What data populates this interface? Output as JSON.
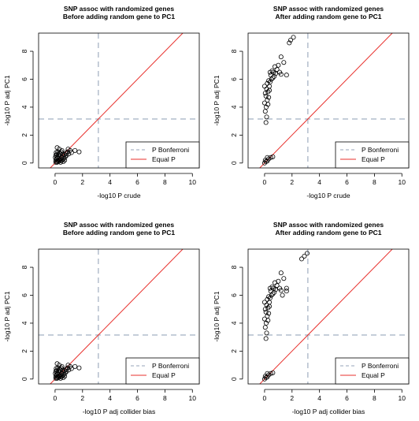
{
  "colors": {
    "bonferroni": "#b8c2d0",
    "equal": "#e8302c",
    "points": "#000000",
    "axis": "#000000"
  },
  "chart_data": [
    {
      "type": "scatter",
      "title": [
        "SNP assoc with randomized genes",
        "Before adding random gene to PC1"
      ],
      "xlabel": "-log10 P crude",
      "ylabel": "-log10 P adj PC1",
      "xlim": [
        -1.2,
        10.5
      ],
      "ylim": [
        -0.35,
        9.3
      ],
      "xticks": [
        0,
        2,
        4,
        6,
        8,
        10
      ],
      "yticks": [
        0,
        2,
        4,
        6,
        8
      ],
      "bonferroni": 3.15,
      "legend": {
        "position": "bottom-right",
        "entries": [
          {
            "label": "P Bonferroni",
            "style": "dashed"
          },
          {
            "label": "Equal P",
            "style": "solid"
          }
        ]
      },
      "points": [
        [
          0.05,
          0.05
        ],
        [
          0.1,
          0.1
        ],
        [
          0.15,
          0.05
        ],
        [
          0.2,
          0.15
        ],
        [
          0.05,
          0.2
        ],
        [
          0.25,
          0.1
        ],
        [
          0.3,
          0.25
        ],
        [
          0.1,
          0.3
        ],
        [
          0.35,
          0.2
        ],
        [
          0.2,
          0.35
        ],
        [
          0.4,
          0.3
        ],
        [
          0.15,
          0.45
        ],
        [
          0.45,
          0.15
        ],
        [
          0.5,
          0.4
        ],
        [
          0.3,
          0.5
        ],
        [
          0.55,
          0.25
        ],
        [
          0.6,
          0.5
        ],
        [
          0.25,
          0.6
        ],
        [
          0.65,
          0.35
        ],
        [
          0.7,
          0.6
        ],
        [
          0.35,
          0.7
        ],
        [
          0.75,
          0.45
        ],
        [
          0.8,
          0.7
        ],
        [
          0.45,
          0.8
        ],
        [
          0.85,
          0.55
        ],
        [
          0.9,
          0.8
        ],
        [
          0.5,
          0.9
        ],
        [
          1.0,
          0.65
        ],
        [
          1.1,
          0.9
        ],
        [
          0.15,
          1.1
        ],
        [
          0.05,
          0.55
        ],
        [
          0.4,
          0.05
        ],
        [
          0.6,
          0.1
        ],
        [
          0.08,
          0.75
        ],
        [
          1.2,
          0.75
        ],
        [
          1.45,
          0.9
        ],
        [
          1.75,
          0.8
        ],
        [
          0.95,
          1.0
        ],
        [
          0.3,
          1.0
        ],
        [
          0.2,
          0.8
        ],
        [
          0.55,
          0.65
        ],
        [
          0.7,
          0.2
        ],
        [
          0.02,
          0.4
        ],
        [
          0.12,
          0.62
        ]
      ]
    },
    {
      "type": "scatter",
      "title": [
        "SNP assoc with randomized genes",
        "After adding random gene to PC1"
      ],
      "xlabel": "-log10 P crude",
      "ylabel": "-log10 P adj PC1",
      "xlim": [
        -1.2,
        10.5
      ],
      "ylim": [
        -0.35,
        9.3
      ],
      "xticks": [
        0,
        2,
        4,
        6,
        8,
        10
      ],
      "yticks": [
        0,
        2,
        4,
        6,
        8
      ],
      "bonferroni": 3.15,
      "legend": {
        "position": "bottom-right",
        "entries": [
          {
            "label": "P Bonferroni",
            "style": "dashed"
          },
          {
            "label": "Equal P",
            "style": "solid"
          }
        ]
      },
      "points": [
        [
          0.0,
          0.0
        ],
        [
          0.1,
          0.1
        ],
        [
          0.2,
          0.15
        ],
        [
          0.3,
          0.3
        ],
        [
          0.45,
          0.4
        ],
        [
          0.6,
          0.45
        ],
        [
          0.2,
          0.4
        ],
        [
          0.05,
          0.2
        ],
        [
          0.1,
          2.9
        ],
        [
          0.15,
          3.3
        ],
        [
          0.05,
          3.7
        ],
        [
          0.12,
          4.0
        ],
        [
          0.0,
          4.3
        ],
        [
          0.2,
          4.5
        ],
        [
          0.1,
          4.8
        ],
        [
          0.05,
          5.0
        ],
        [
          0.25,
          5.1
        ],
        [
          0.15,
          5.3
        ],
        [
          0.35,
          5.5
        ],
        [
          0.2,
          5.7
        ],
        [
          0.4,
          5.8
        ],
        [
          0.5,
          6.0
        ],
        [
          0.3,
          5.9
        ],
        [
          0.6,
          6.1
        ],
        [
          0.7,
          6.2
        ],
        [
          0.45,
          6.3
        ],
        [
          0.8,
          6.4
        ],
        [
          0.9,
          6.7
        ],
        [
          1.1,
          6.5
        ],
        [
          1.2,
          6.35
        ],
        [
          0.55,
          6.6
        ],
        [
          0.65,
          6.5
        ],
        [
          1.0,
          7.0
        ],
        [
          0.75,
          6.9
        ],
        [
          1.4,
          7.2
        ],
        [
          1.6,
          6.3
        ],
        [
          1.2,
          7.6
        ],
        [
          0.3,
          4.7
        ],
        [
          0.25,
          4.2
        ],
        [
          0.35,
          5.2
        ],
        [
          1.8,
          8.6
        ],
        [
          1.9,
          8.8
        ],
        [
          2.1,
          9.0
        ],
        [
          0.0,
          5.5
        ],
        [
          0.4,
          6.5
        ]
      ]
    },
    {
      "type": "scatter",
      "title": [
        "SNP assoc with randomized genes",
        "Before adding random gene to PC1"
      ],
      "xlabel": "-log10 P adj collider bias",
      "ylabel": "-log10 P adj PC1",
      "xlim": [
        -1.2,
        10.5
      ],
      "ylim": [
        -0.35,
        9.3
      ],
      "xticks": [
        0,
        2,
        4,
        6,
        8,
        10
      ],
      "yticks": [
        0,
        2,
        4,
        6,
        8
      ],
      "bonferroni": 3.15,
      "legend": {
        "position": "bottom-right",
        "entries": [
          {
            "label": "P Bonferroni",
            "style": "dashed"
          },
          {
            "label": "Equal P",
            "style": "solid"
          }
        ]
      },
      "points": [
        [
          0.05,
          0.05
        ],
        [
          0.1,
          0.1
        ],
        [
          0.15,
          0.05
        ],
        [
          0.2,
          0.15
        ],
        [
          0.05,
          0.2
        ],
        [
          0.25,
          0.1
        ],
        [
          0.3,
          0.25
        ],
        [
          0.1,
          0.3
        ],
        [
          0.35,
          0.2
        ],
        [
          0.2,
          0.35
        ],
        [
          0.4,
          0.3
        ],
        [
          0.15,
          0.45
        ],
        [
          0.45,
          0.15
        ],
        [
          0.5,
          0.4
        ],
        [
          0.3,
          0.5
        ],
        [
          0.55,
          0.25
        ],
        [
          0.6,
          0.5
        ],
        [
          0.25,
          0.6
        ],
        [
          0.65,
          0.35
        ],
        [
          0.7,
          0.6
        ],
        [
          0.35,
          0.7
        ],
        [
          0.75,
          0.45
        ],
        [
          0.8,
          0.7
        ],
        [
          0.45,
          0.8
        ],
        [
          0.85,
          0.55
        ],
        [
          0.9,
          0.8
        ],
        [
          0.5,
          0.9
        ],
        [
          1.0,
          0.65
        ],
        [
          1.1,
          0.9
        ],
        [
          0.15,
          1.1
        ],
        [
          0.05,
          0.55
        ],
        [
          0.4,
          0.05
        ],
        [
          0.6,
          0.1
        ],
        [
          0.08,
          0.75
        ],
        [
          1.2,
          0.75
        ],
        [
          1.45,
          0.9
        ],
        [
          1.75,
          0.8
        ],
        [
          0.95,
          1.0
        ],
        [
          0.3,
          1.0
        ],
        [
          0.2,
          0.8
        ],
        [
          0.55,
          0.65
        ],
        [
          0.7,
          0.2
        ],
        [
          0.02,
          0.4
        ],
        [
          0.12,
          0.62
        ]
      ]
    },
    {
      "type": "scatter",
      "title": [
        "SNP assoc with randomized genes",
        "After adding random gene to PC1"
      ],
      "xlabel": "-log10 P adj collider bias",
      "ylabel": "-log10 P adj PC1",
      "xlim": [
        -1.2,
        10.5
      ],
      "ylim": [
        -0.35,
        9.3
      ],
      "xticks": [
        0,
        2,
        4,
        6,
        8,
        10
      ],
      "yticks": [
        0,
        2,
        4,
        6,
        8
      ],
      "bonferroni": 3.15,
      "legend": {
        "position": "bottom-right",
        "entries": [
          {
            "label": "P Bonferroni",
            "style": "dashed"
          },
          {
            "label": "Equal P",
            "style": "solid"
          }
        ]
      },
      "points": [
        [
          0.0,
          0.0
        ],
        [
          0.1,
          0.1
        ],
        [
          0.2,
          0.15
        ],
        [
          0.3,
          0.3
        ],
        [
          0.45,
          0.4
        ],
        [
          0.6,
          0.45
        ],
        [
          0.2,
          0.4
        ],
        [
          0.05,
          0.2
        ],
        [
          0.1,
          2.9
        ],
        [
          0.15,
          3.3
        ],
        [
          0.05,
          3.7
        ],
        [
          0.12,
          4.0
        ],
        [
          0.0,
          4.3
        ],
        [
          0.2,
          4.5
        ],
        [
          0.1,
          4.8
        ],
        [
          0.05,
          5.0
        ],
        [
          0.25,
          5.1
        ],
        [
          0.15,
          5.3
        ],
        [
          0.35,
          5.5
        ],
        [
          0.2,
          5.7
        ],
        [
          0.4,
          5.8
        ],
        [
          0.5,
          6.0
        ],
        [
          0.3,
          5.9
        ],
        [
          0.6,
          6.1
        ],
        [
          0.7,
          6.2
        ],
        [
          0.45,
          6.3
        ],
        [
          0.8,
          6.4
        ],
        [
          0.9,
          6.7
        ],
        [
          1.1,
          6.5
        ],
        [
          1.2,
          6.35
        ],
        [
          0.55,
          6.6
        ],
        [
          0.65,
          6.5
        ],
        [
          1.0,
          7.0
        ],
        [
          0.75,
          6.9
        ],
        [
          1.4,
          7.2
        ],
        [
          1.6,
          6.3
        ],
        [
          1.2,
          7.6
        ],
        [
          0.3,
          4.7
        ],
        [
          0.25,
          4.2
        ],
        [
          0.35,
          5.2
        ],
        [
          2.7,
          8.6
        ],
        [
          2.9,
          8.8
        ],
        [
          3.1,
          9.0
        ],
        [
          0.0,
          5.5
        ],
        [
          0.4,
          6.5
        ],
        [
          1.6,
          6.5
        ],
        [
          1.3,
          6.0
        ]
      ]
    }
  ]
}
